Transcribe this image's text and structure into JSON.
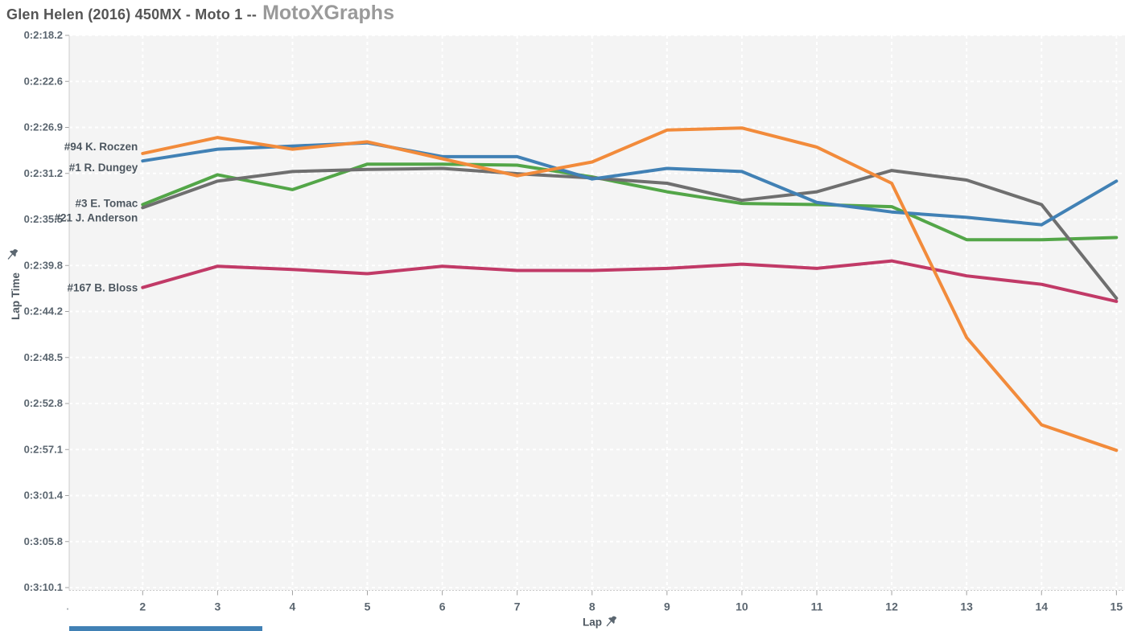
{
  "header": {
    "title": "Glen Helen (2016) 450MX - Moto 1 --",
    "brand": "MotoXGraphs"
  },
  "chart_data": {
    "type": "line",
    "title": "Glen Helen (2016) 450MX - Moto 1 -- MotoXGraphs",
    "xlabel": "Lap",
    "ylabel": "Lap Time",
    "x": [
      2,
      3,
      4,
      5,
      6,
      7,
      8,
      9,
      10,
      11,
      12,
      13,
      14,
      15
    ],
    "x_tick_labels": [
      "2",
      "3",
      "4",
      "5",
      "6",
      "7",
      "8",
      "9",
      "10",
      "11",
      "12",
      "13",
      "14",
      "15"
    ],
    "x_first_partial_tick": ".",
    "y_tick_labels": [
      "0:2:18.2",
      "0:2:22.6",
      "0:2:26.9",
      "0:2:31.2",
      "0:2:35.5",
      "0:2:39.8",
      "0:2:44.2",
      "0:2:48.5",
      "0:2:52.8",
      "0:2:57.1",
      "0:3:01.4",
      "0:3:05.8",
      "0:3:10.1"
    ],
    "y_range_seconds": [
      138.2,
      190.1
    ],
    "y_axis_inverted_note": "lower (faster) lap times at top",
    "grid": true,
    "legend_position": "inline-left-of-first-point",
    "series": [
      {
        "label": "#94 K. Roczen",
        "color": "#f28b3b",
        "values": [
          149.3,
          147.8,
          148.9,
          148.2,
          149.8,
          151.4,
          150.1,
          147.1,
          146.9,
          148.7,
          152.1,
          166.6,
          174.8,
          177.2
        ]
      },
      {
        "label": "#1 R. Dungey",
        "color": "#4181b5",
        "values": [
          150.0,
          148.9,
          148.6,
          148.3,
          149.6,
          149.6,
          151.7,
          150.7,
          151.0,
          153.9,
          154.8,
          155.3,
          156.0,
          151.9
        ]
      },
      {
        "label": "#3 E. Tomac",
        "color": "#53a648",
        "values": [
          154.1,
          151.3,
          152.7,
          150.3,
          150.3,
          150.4,
          151.5,
          152.9,
          154.0,
          154.1,
          154.3,
          157.4,
          157.4,
          157.2
        ]
      },
      {
        "label": "#21 J. Anderson",
        "color": "#6f6f6f",
        "values": [
          154.4,
          151.9,
          151.0,
          150.8,
          150.7,
          151.2,
          151.6,
          152.1,
          153.7,
          152.9,
          150.9,
          151.8,
          154.1,
          162.9
        ]
      },
      {
        "label": "#167 B. Bloss",
        "color": "#c13a67",
        "values": [
          161.9,
          159.9,
          160.2,
          160.6,
          159.9,
          160.3,
          160.3,
          160.1,
          159.7,
          160.1,
          159.4,
          160.8,
          161.6,
          163.2
        ]
      }
    ],
    "colors": {
      "plot_background": "#f4f4f4",
      "gridline": "#ffffff",
      "axis_line": "#cccccc",
      "tick_mark": "#a0a0a0",
      "tick_label": "#5b6670",
      "series_label": "#4d5760",
      "axis_title": "#4d5760",
      "pin_icon": "#5b6670",
      "range_bar": "#4181b5"
    }
  },
  "icons": {
    "y_axis_pin": "pushpin",
    "x_axis_pin": "pushpin"
  }
}
